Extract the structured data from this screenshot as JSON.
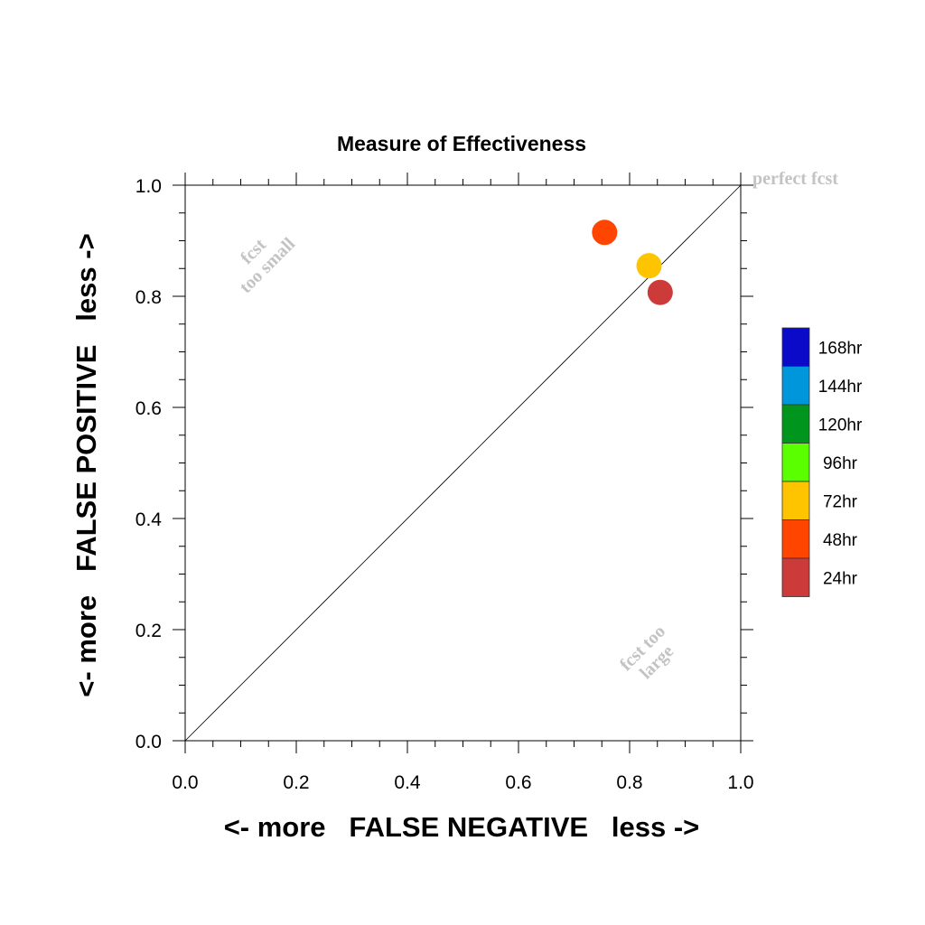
{
  "chart_data": {
    "type": "scatter",
    "title": "Measure of Effectiveness",
    "xlabel": "<- more   FALSE NEGATIVE   less ->",
    "ylabel": "<- more   FALSE POSITIVE   less ->",
    "xlim": [
      0.0,
      1.0
    ],
    "ylim": [
      0.0,
      1.0
    ],
    "x_ticks": [
      "0.0",
      "0.2",
      "0.4",
      "0.6",
      "0.8",
      "1.0"
    ],
    "y_ticks": [
      "0.0",
      "0.2",
      "0.4",
      "0.6",
      "0.8",
      "1.0"
    ],
    "grid": false,
    "diagonal_line": true,
    "points": [
      {
        "series": "48hr",
        "x": 0.755,
        "y": 0.915,
        "color": "#ff4500"
      },
      {
        "series": "72hr",
        "x": 0.835,
        "y": 0.855,
        "color": "#ffc400"
      },
      {
        "series": "24hr",
        "x": 0.855,
        "y": 0.807,
        "color": "#cc3a3a"
      }
    ],
    "legend": {
      "placement": "right",
      "entries": [
        {
          "label": "168hr",
          "color": "#0a0ac8"
        },
        {
          "label": "144hr",
          "color": "#0096dc"
        },
        {
          "label": "120hr",
          "color": "#00961e"
        },
        {
          "label": "96hr",
          "color": "#5aff00"
        },
        {
          "label": "72hr",
          "color": "#ffc400"
        },
        {
          "label": "48hr",
          "color": "#ff4500"
        },
        {
          "label": "24hr",
          "color": "#cc3a3a"
        }
      ]
    },
    "annotations": {
      "perfect": "perfect fcst",
      "too_small_1": "fcst",
      "too_small_2": "too small",
      "too_large_1": "fcst too",
      "too_large_2": "large"
    }
  }
}
